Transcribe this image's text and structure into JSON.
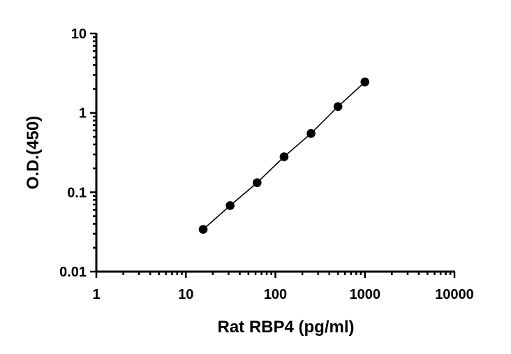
{
  "chart_data": {
    "type": "scatter",
    "xlabel": "Rat RBP4 (pg/ml)",
    "ylabel": "O.D.(450)",
    "xscale": "log",
    "yscale": "log",
    "xlim": [
      1,
      10000
    ],
    "ylim": [
      0.01,
      10
    ],
    "x_tick_labels": [
      "1",
      "10",
      "100",
      "1000",
      "10000"
    ],
    "y_tick_labels": [
      "0.01",
      "0.1",
      "1",
      "10"
    ],
    "grid": false,
    "series": [
      {
        "x": [
          15.6,
          31.25,
          62.5,
          125,
          250,
          500,
          1000
        ],
        "y": [
          0.034,
          0.068,
          0.132,
          0.28,
          0.55,
          1.2,
          2.45
        ],
        "fit_line": true,
        "marker_color": "#000000"
      }
    ]
  }
}
